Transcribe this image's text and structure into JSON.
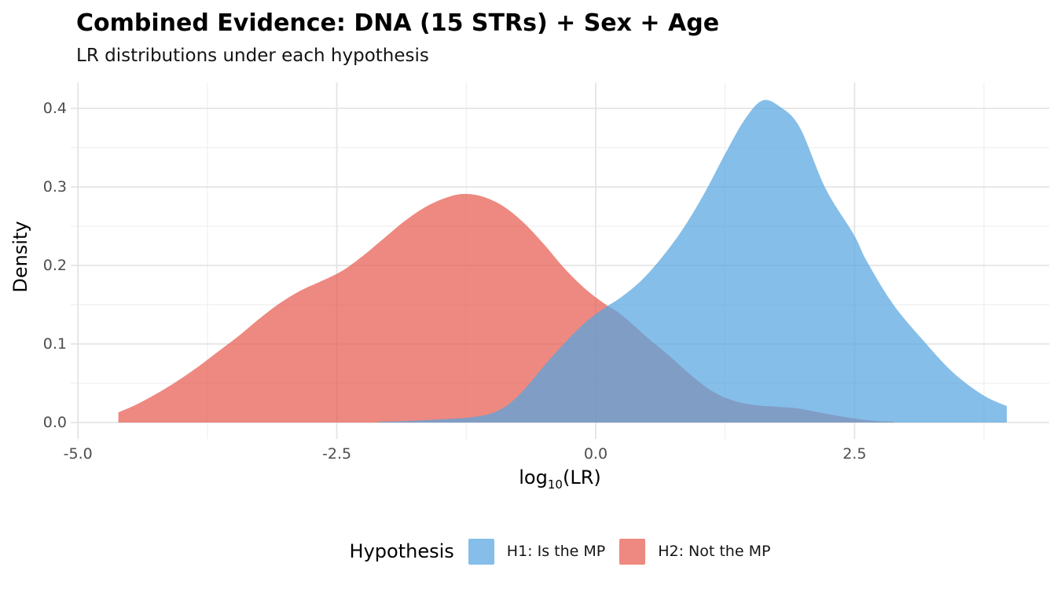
{
  "header": {
    "title": "Combined Evidence: DNA (15 STRs) + Sex + Age",
    "subtitle": "LR distributions under each hypothesis"
  },
  "axes": {
    "x_title_pre": "log",
    "x_title_sub": "10",
    "x_title_post": "(LR)",
    "y_title": "Density"
  },
  "legend": {
    "title": "Hypothesis",
    "position": "bottom",
    "items": [
      {
        "label": "H1: Is the MP",
        "color": "rgba(86,165,223,0.72)"
      },
      {
        "label": "H2: Not the MP",
        "color": "rgba(230,92,79,0.72)"
      }
    ]
  },
  "chart_data": {
    "type": "area",
    "title": "Combined Evidence: DNA (15 STRs) + Sex + Age",
    "subtitle": "LR distributions under each hypothesis",
    "xlabel": "log10(LR)",
    "ylabel": "Density",
    "x_domain": [
      -5.07,
      4.38
    ],
    "y_domain": [
      -0.021,
      0.433
    ],
    "grid": {
      "major_color": "#e4e4e4",
      "minor_color": "#efefef",
      "background": "#ffffff"
    },
    "x_ticks": [
      {
        "v": -5.0,
        "label": "-5.0"
      },
      {
        "v": -2.5,
        "label": "-2.5"
      },
      {
        "v": 0.0,
        "label": "0.0"
      },
      {
        "v": 2.5,
        "label": "2.5"
      }
    ],
    "x_minor_ticks": [
      -3.75,
      -1.25,
      1.25,
      3.75
    ],
    "y_ticks": [
      {
        "v": 0.0,
        "label": "0.0"
      },
      {
        "v": 0.1,
        "label": "0.1"
      },
      {
        "v": 0.2,
        "label": "0.2"
      },
      {
        "v": 0.3,
        "label": "0.3"
      },
      {
        "v": 0.4,
        "label": "0.4"
      }
    ],
    "y_minor_ticks": [
      0.05,
      0.15,
      0.25,
      0.35
    ],
    "series": [
      {
        "name": "H2: Not the MP",
        "hypothesis": "H2",
        "fill": "rgba(230,92,79,0.72)",
        "peak": {
          "x": -1.28,
          "y": 0.291
        },
        "points": [
          [
            -4.61,
            0.013
          ],
          [
            -4.45,
            0.022
          ],
          [
            -4.25,
            0.036
          ],
          [
            -4.05,
            0.052
          ],
          [
            -3.85,
            0.07
          ],
          [
            -3.65,
            0.09
          ],
          [
            -3.45,
            0.11
          ],
          [
            -3.25,
            0.132
          ],
          [
            -3.05,
            0.152
          ],
          [
            -2.85,
            0.168
          ],
          [
            -2.65,
            0.18
          ],
          [
            -2.45,
            0.193
          ],
          [
            -2.25,
            0.212
          ],
          [
            -2.05,
            0.234
          ],
          [
            -1.85,
            0.256
          ],
          [
            -1.65,
            0.274
          ],
          [
            -1.45,
            0.286
          ],
          [
            -1.28,
            0.291
          ],
          [
            -1.1,
            0.288
          ],
          [
            -0.9,
            0.276
          ],
          [
            -0.7,
            0.255
          ],
          [
            -0.5,
            0.227
          ],
          [
            -0.3,
            0.196
          ],
          [
            -0.1,
            0.17
          ],
          [
            0.1,
            0.15
          ],
          [
            0.25,
            0.137
          ],
          [
            0.5,
            0.108
          ],
          [
            0.7,
            0.086
          ],
          [
            0.95,
            0.057
          ],
          [
            1.15,
            0.038
          ],
          [
            1.35,
            0.027
          ],
          [
            1.55,
            0.022
          ],
          [
            1.75,
            0.02
          ],
          [
            1.95,
            0.018
          ],
          [
            2.15,
            0.013
          ],
          [
            2.45,
            0.006
          ],
          [
            2.7,
            0.002
          ],
          [
            2.88,
            0.001
          ]
        ]
      },
      {
        "name": "H1: Is the MP",
        "hypothesis": "H1",
        "fill": "rgba(86,165,223,0.72)",
        "peak": {
          "x": 1.61,
          "y": 0.41
        },
        "points": [
          [
            -2.1,
            0.001
          ],
          [
            -1.8,
            0.002
          ],
          [
            -1.5,
            0.004
          ],
          [
            -1.25,
            0.006
          ],
          [
            -1.05,
            0.01
          ],
          [
            -0.9,
            0.018
          ],
          [
            -0.78,
            0.03
          ],
          [
            -0.65,
            0.048
          ],
          [
            -0.5,
            0.072
          ],
          [
            -0.35,
            0.094
          ],
          [
            -0.2,
            0.115
          ],
          [
            -0.05,
            0.133
          ],
          [
            0.1,
            0.147
          ],
          [
            0.25,
            0.16
          ],
          [
            0.45,
            0.182
          ],
          [
            0.65,
            0.212
          ],
          [
            0.85,
            0.248
          ],
          [
            1.05,
            0.292
          ],
          [
            1.25,
            0.342
          ],
          [
            1.44,
            0.386
          ],
          [
            1.61,
            0.41
          ],
          [
            1.78,
            0.402
          ],
          [
            1.97,
            0.376
          ],
          [
            2.22,
            0.298
          ],
          [
            2.49,
            0.24
          ],
          [
            2.62,
            0.205
          ],
          [
            2.87,
            0.151
          ],
          [
            3.14,
            0.108
          ],
          [
            3.44,
            0.065
          ],
          [
            3.74,
            0.035
          ],
          [
            3.97,
            0.021
          ]
        ]
      }
    ]
  }
}
